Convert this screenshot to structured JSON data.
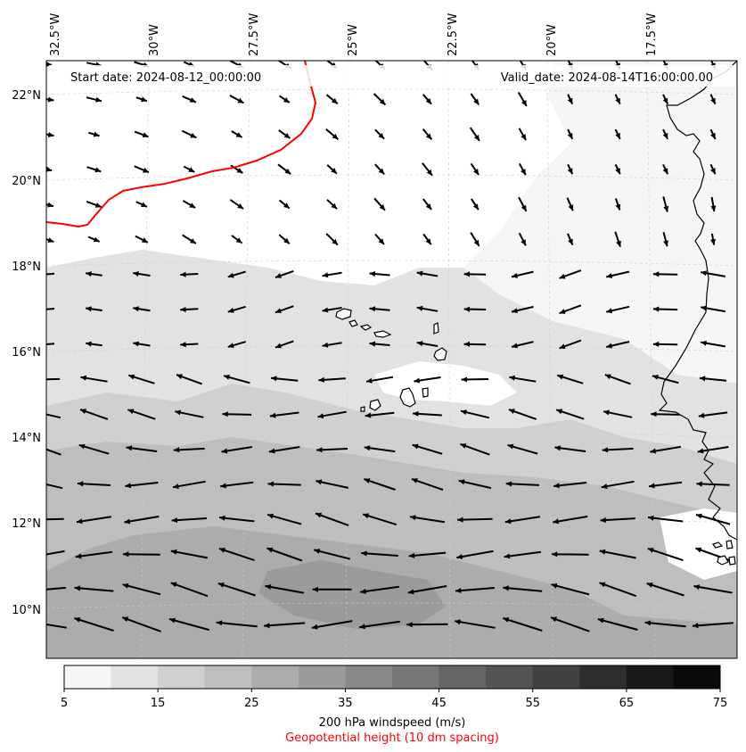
{
  "map": {
    "start_date": "Start date: 2024-08-12_00:00:00",
    "valid_date": "Valid_date: 2024-08-14T16:00:00.00",
    "lon_labels": [
      "32.5°W",
      "30°W",
      "27.5°W",
      "25°W",
      "22.5°W",
      "20°W",
      "17.5°W"
    ],
    "lat_labels": [
      "22°N",
      "20°N",
      "18°N",
      "16°N",
      "14°N",
      "12°N",
      "10°N"
    ],
    "contour_color": "#ff0000",
    "coast_color": "#000000"
  },
  "colorbar": {
    "ticks": [
      "5",
      "15",
      "25",
      "35",
      "45",
      "55",
      "65",
      "75"
    ],
    "colors": [
      "#f6f6f6",
      "#e2e2e2",
      "#d0d0d0",
      "#bebebe",
      "#acacac",
      "#9b9b9b",
      "#898989",
      "#777777",
      "#656565",
      "#545454",
      "#424242",
      "#2d2d2d",
      "#191919",
      "#0a0a0a"
    ],
    "title": "200 hPa windspeed (m/s)",
    "subtitle": "Geopotential height (10 dm spacing)",
    "subtitle_color": "#ff0000"
  }
}
